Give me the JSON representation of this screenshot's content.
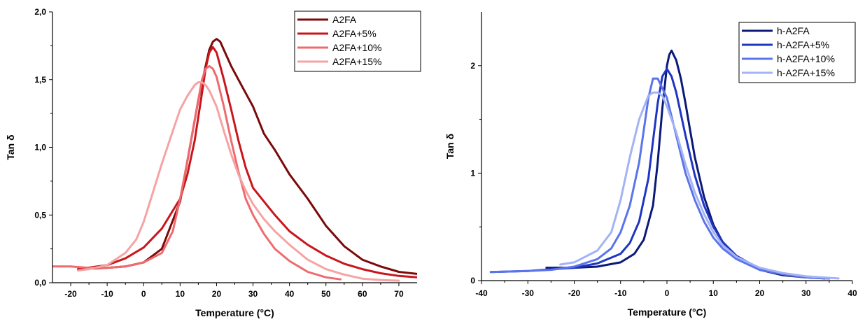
{
  "chart_data": [
    {
      "type": "line",
      "xlabel": "Temperature (°C)",
      "ylabel": "Tan δ",
      "xlim": [
        -25,
        75
      ],
      "ylim": [
        0,
        2.0
      ],
      "xticks": [
        -20,
        -10,
        0,
        10,
        20,
        30,
        40,
        50,
        60,
        70
      ],
      "yticks": [
        0.0,
        0.5,
        1.0,
        1.5,
        2.0
      ],
      "ytick_labels": [
        "0,0",
        "0,5",
        "1,0",
        "1,5",
        "2,0"
      ],
      "xtick_labels": [
        "-20",
        "-10",
        "0",
        "10",
        "20",
        "30",
        "40",
        "50",
        "60",
        "70"
      ],
      "grid": false,
      "legend": "top-right",
      "series": [
        {
          "name": "A2FA",
          "color": "#7b0a0a",
          "x": [
            -18,
            -10,
            -5,
            0,
            5,
            10,
            13,
            15,
            17,
            18,
            19,
            20,
            21,
            22,
            24,
            26,
            28,
            30,
            33,
            36,
            40,
            45,
            50,
            55,
            60,
            65,
            70,
            75
          ],
          "y": [
            0.1,
            0.11,
            0.12,
            0.15,
            0.25,
            0.6,
            1.05,
            1.35,
            1.6,
            1.72,
            1.78,
            1.8,
            1.78,
            1.72,
            1.6,
            1.5,
            1.4,
            1.3,
            1.1,
            0.98,
            0.8,
            0.62,
            0.42,
            0.27,
            0.17,
            0.12,
            0.08,
            0.065
          ]
        },
        {
          "name": "A2FA+5%",
          "color": "#c8171c",
          "x": [
            -18,
            -10,
            -5,
            0,
            5,
            10,
            12,
            14,
            16,
            17,
            18,
            19,
            20,
            22,
            24,
            26,
            28,
            30,
            33,
            36,
            40,
            45,
            50,
            55,
            60,
            65,
            70,
            75
          ],
          "y": [
            0.1,
            0.13,
            0.18,
            0.26,
            0.4,
            0.62,
            0.8,
            1.05,
            1.4,
            1.58,
            1.7,
            1.74,
            1.7,
            1.5,
            1.28,
            1.05,
            0.85,
            0.7,
            0.6,
            0.5,
            0.38,
            0.28,
            0.2,
            0.14,
            0.1,
            0.07,
            0.05,
            0.04
          ]
        },
        {
          "name": "A2FA+10%",
          "color": "#ef6a6e",
          "x": [
            -25,
            -20,
            -15,
            -10,
            -5,
            0,
            5,
            8,
            10,
            12,
            14,
            16,
            17,
            18,
            19,
            20,
            22,
            24,
            26,
            28,
            30,
            33,
            36,
            40,
            45,
            50,
            54
          ],
          "y": [
            0.12,
            0.12,
            0.11,
            0.11,
            0.12,
            0.15,
            0.22,
            0.38,
            0.62,
            0.9,
            1.2,
            1.5,
            1.58,
            1.6,
            1.58,
            1.52,
            1.3,
            1.05,
            0.82,
            0.62,
            0.5,
            0.36,
            0.25,
            0.16,
            0.08,
            0.04,
            0.025
          ]
        },
        {
          "name": "A2FA+15%",
          "color": "#f6a3a3",
          "x": [
            -18,
            -15,
            -10,
            -5,
            -2,
            0,
            2,
            5,
            8,
            10,
            12,
            14,
            15,
            16,
            17,
            18,
            20,
            22,
            24,
            26,
            28,
            30,
            33,
            36,
            40,
            45,
            50,
            55,
            60,
            65,
            70
          ],
          "y": [
            0.09,
            0.1,
            0.13,
            0.22,
            0.32,
            0.45,
            0.62,
            0.88,
            1.12,
            1.28,
            1.38,
            1.46,
            1.48,
            1.48,
            1.46,
            1.42,
            1.3,
            1.12,
            0.95,
            0.8,
            0.68,
            0.58,
            0.47,
            0.38,
            0.28,
            0.17,
            0.1,
            0.06,
            0.03,
            0.02,
            0.015
          ]
        }
      ]
    },
    {
      "type": "line",
      "xlabel": "Temperature (°C)",
      "ylabel": "Tan δ",
      "xlim": [
        -40,
        40
      ],
      "ylim": [
        0,
        2.5
      ],
      "xticks": [
        -40,
        -30,
        -20,
        -10,
        0,
        10,
        20,
        30,
        40
      ],
      "yticks": [
        0,
        1,
        2
      ],
      "ytick_labels": [
        "0",
        "1",
        "2"
      ],
      "xtick_labels": [
        "-40",
        "-30",
        "-20",
        "-10",
        "0",
        "10",
        "20",
        "30",
        "40"
      ],
      "grid": false,
      "legend": "top-right",
      "series": [
        {
          "name": "h-A2FA",
          "color": "#0b1a78",
          "x": [
            -26,
            -20,
            -15,
            -10,
            -7,
            -5,
            -3,
            -2,
            -1,
            0,
            0.5,
            1,
            2,
            3,
            4,
            5,
            6,
            8,
            10,
            12,
            15,
            20,
            25,
            30,
            34
          ],
          "y": [
            0.12,
            0.12,
            0.13,
            0.17,
            0.25,
            0.38,
            0.7,
            1.1,
            1.6,
            2.0,
            2.1,
            2.14,
            2.05,
            1.88,
            1.65,
            1.4,
            1.15,
            0.78,
            0.52,
            0.36,
            0.22,
            0.1,
            0.05,
            0.03,
            0.02
          ]
        },
        {
          "name": "h-A2FA+5%",
          "color": "#1f36c2",
          "x": [
            -38,
            -30,
            -20,
            -15,
            -10,
            -8,
            -6,
            -4,
            -3,
            -2,
            -1,
            0,
            1,
            2,
            4,
            6,
            8,
            10,
            12,
            15,
            20,
            25,
            30,
            35
          ],
          "y": [
            0.08,
            0.09,
            0.12,
            0.16,
            0.25,
            0.35,
            0.55,
            0.95,
            1.3,
            1.65,
            1.9,
            1.97,
            1.9,
            1.75,
            1.35,
            0.98,
            0.7,
            0.5,
            0.36,
            0.23,
            0.11,
            0.06,
            0.03,
            0.02
          ]
        },
        {
          "name": "h-A2FA+10%",
          "color": "#5b74ea",
          "x": [
            -38,
            -30,
            -25,
            -20,
            -15,
            -12,
            -10,
            -8,
            -6,
            -5,
            -4,
            -3,
            -2,
            0,
            2,
            4,
            6,
            8,
            10,
            12,
            15,
            20,
            25,
            30,
            35
          ],
          "y": [
            0.08,
            0.09,
            0.1,
            0.13,
            0.2,
            0.3,
            0.45,
            0.7,
            1.1,
            1.4,
            1.7,
            1.88,
            1.88,
            1.7,
            1.35,
            1.0,
            0.75,
            0.55,
            0.4,
            0.3,
            0.2,
            0.1,
            0.06,
            0.03,
            0.02
          ]
        },
        {
          "name": "h-A2FA+15%",
          "color": "#a3b3f5",
          "x": [
            -23,
            -20,
            -15,
            -12,
            -10,
            -8,
            -6,
            -4,
            -3,
            -2,
            -1,
            0,
            2,
            4,
            6,
            8,
            10,
            12,
            15,
            20,
            25,
            30,
            37
          ],
          "y": [
            0.15,
            0.17,
            0.28,
            0.45,
            0.75,
            1.15,
            1.5,
            1.72,
            1.75,
            1.75,
            1.72,
            1.62,
            1.38,
            1.08,
            0.82,
            0.62,
            0.45,
            0.33,
            0.22,
            0.12,
            0.07,
            0.04,
            0.02
          ]
        }
      ]
    }
  ]
}
